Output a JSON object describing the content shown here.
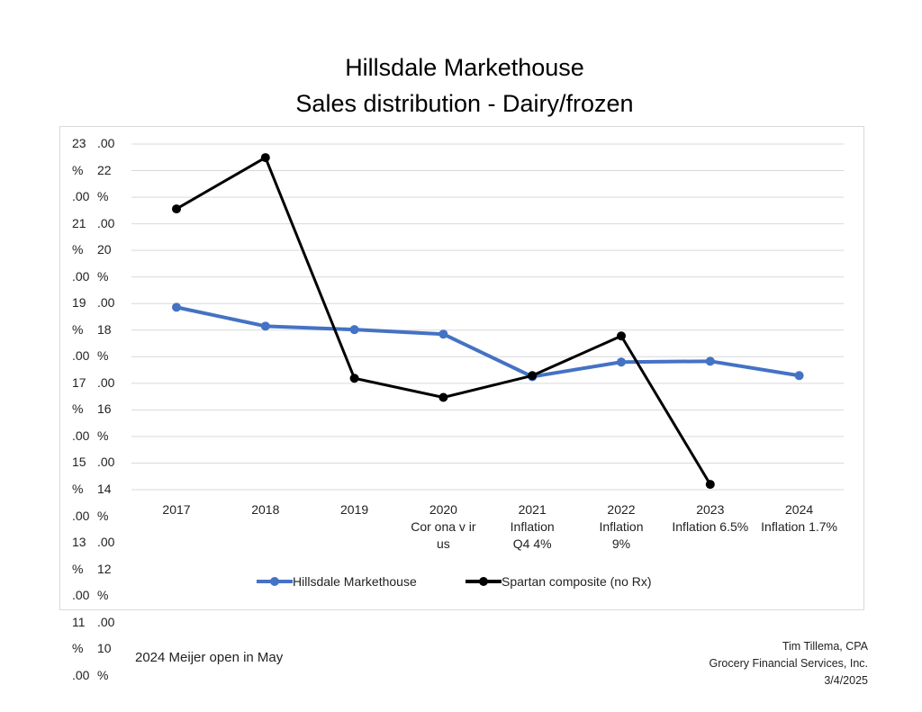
{
  "chart_data": {
    "type": "line",
    "title": [
      "Hillsdale Markethouse",
      "Sales distribution - Dairy/frozen"
    ],
    "categories": [
      "2017",
      "2018",
      "2019",
      "2020",
      "2021",
      "2022",
      "2023",
      "2024"
    ],
    "category_annotations": [
      "",
      "",
      "",
      "Cor ona v ir us",
      "Inflation\nQ4 4%",
      "Inflation\n9%",
      "Inflation 6.5%",
      "Inflation 1.7%"
    ],
    "y_tick_labels": [
      "23.00%",
      "22.00%",
      "21.00%",
      "20.00%",
      "19.00%",
      "18.00%",
      "17.00%",
      "16.00%",
      "15.00%",
      "14.00%",
      "13.00%",
      "12.00%",
      "11.00%",
      "10.00%"
    ],
    "ylim": [
      10,
      23
    ],
    "grid": true,
    "legend_position": "bottom",
    "series": [
      {
        "name": "Hillsdale Markethouse",
        "color": "#4472c4",
        "values": [
          16.86,
          16.15,
          16.02,
          15.85,
          14.25,
          14.8,
          14.83,
          14.29
        ]
      },
      {
        "name": "Spartan composite (no Rx)",
        "color": "#000000",
        "values": [
          20.56,
          22.49,
          14.19,
          13.47,
          14.29,
          15.78,
          10.2,
          null
        ]
      }
    ]
  },
  "notes": {
    "left": "2024 Meijer open in May",
    "right": [
      "Tim Tillema, CPA",
      "Grocery Financial Services, Inc.",
      "3/4/2025"
    ]
  }
}
